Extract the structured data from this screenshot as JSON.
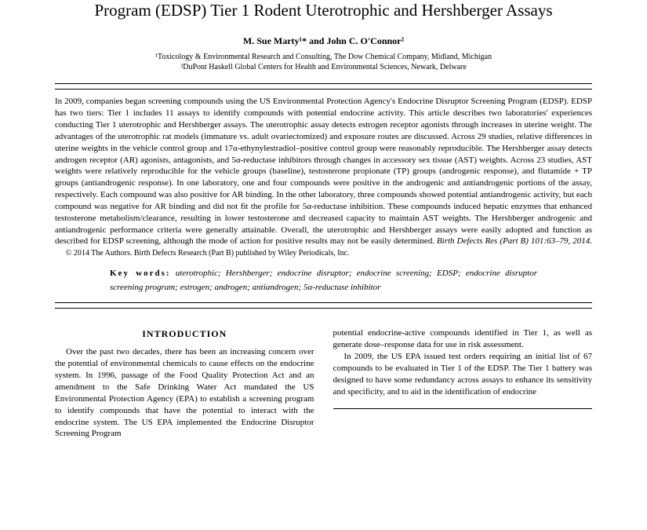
{
  "title": "Program (EDSP) Tier 1 Rodent Uterotrophic and Hershberger Assays",
  "authors": "M. Sue Marty¹* and John C. O'Connor²",
  "affil1": "¹Toxicology & Environmental Research and Consulting, The Dow Chemical Company, Midland, Michigan",
  "affil2": "²DuPont Haskell Global Centers for Health and Environmental Sciences, Newark, Delware",
  "abstract": "In 2009, companies began screening compounds using the US Environmental Protection Agency's Endocrine Disruptor Screening Program (EDSP). EDSP has two tiers: Tier 1 includes 11 assays to identify compounds with potential endocrine activity. This article describes two laboratories' experiences conducting Tier 1 uterotrophic and Hershberger assays. The uterotrophic assay detects estrogen receptor agonists through increases in uterine weight. The advantages of the uterotrophic rat models (immature vs. adult ovariectomized) and exposure routes are discussed. Across 29 studies, relative differences in uterine weights in the vehicle control group and 17α-ethynylestradiol–positive control group were reasonably reproducible. The Hershberger assay detects androgen receptor (AR) agonists, antagonists, and 5α-reductase inhibitors through changes in accessory sex tissue (AST) weights. Across 23 studies, AST weights were relatively reproducible for the vehicle groups (baseline), testosterone propionate (TP) groups (androgenic response), and flutamide + TP groups (antiandrogenic response). In one laboratory, one and four compounds were positive in the androgenic and antiandrogenic portions of the assay, respectively. Each compound was also positive for AR binding. In the other laboratory, three compounds showed potential antiandrogenic activity, but each compound was negative for AR binding and did not fit the profile for 5α-reductase inhibition. These compounds induced hepatic enzymes that enhanced testosterone metabolism/clearance, resulting in lower testosterone and decreased capacity to maintain AST weights. The Hershberger androgenic and antiandrogenic performance criteria were generally attainable. Overall, the uterotrophic and Hershberger assays were easily adopted and function as described for EDSP screening, although the mode of action for positive results may not be easily determined. ",
  "citation": "Birth Defects Res (Part B) 101:63–79, 2014.",
  "copyright": "© 2014 The Authors. Birth Defects Research (Part B) published by Wiley Periodicals, Inc.",
  "keywords_label": "Key words:",
  "keywords": "uterotrophic; Hershberger; endocrine disruptor; endocrine screening; EDSP; endocrine disruptor screening program; estrogen; androgen; antiandrogen; 5α-reductase inhibitor",
  "section_heading": "INTRODUCTION",
  "col1_p1": "Over the past two decades, there has been an increasing concern over the potential of environmental chemicals to cause effects on the endocrine system. In 1996, passage of the Food Quality Protection Act and an amendment to the Safe Drinking Water Act mandated the US Environmental Protection Agency (EPA) to establish a screening program to identify compounds that have the potential to interact with the endocrine system. The US EPA implemented the Endocrine Disruptor Screening Program",
  "col2_p1": "potential endocrine-active compounds identified in Tier 1, as well as generate dose–response data for use in risk assessment.",
  "col2_p2": "In 2009, the US EPA issued test orders requiring an initial list of 67 compounds to be evaluated in Tier 1 of the EDSP. The Tier 1 battery was designed to have some redundancy across assays to enhance its sensitivity and specificity, and to aid in the identification of endocrine"
}
